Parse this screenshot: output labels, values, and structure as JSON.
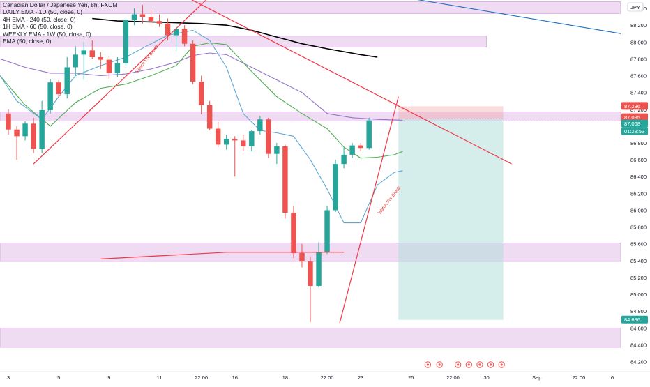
{
  "title": "Canadian Dollar / Japanese Yen, 8h, FXCM",
  "currency": "JPY",
  "indicators": [
    {
      "label": "DAILY EMA - 1D (50, close, 0)",
      "color": "#131722"
    },
    {
      "label": "4H EMA - 240 (50, close, 0)",
      "color": "#131722"
    },
    {
      "label": "1H EMA - 60 (50, close, 0)",
      "color": "#131722"
    },
    {
      "label": "WEEKLY EMA - 1W (50, close, 0)",
      "color": "#131722"
    },
    {
      "label": "EMA (50, close, 0)",
      "color": "#131722"
    }
  ],
  "annotations": [
    {
      "text": "Watch For Break",
      "x": 8.2,
      "y": 87.63
    },
    {
      "text": "Watch For Break",
      "x": 22.65,
      "y": 85.95
    }
  ],
  "price_badges": [
    {
      "text": "87.236",
      "color": "#ef5350"
    },
    {
      "text": "87.085",
      "color": "#ef5350"
    },
    {
      "text": "87.068",
      "color": "#26a69a"
    },
    {
      "text": "01:23:53",
      "color": "#26a69a"
    },
    {
      "text": "84.696",
      "color": "#26a69a"
    }
  ],
  "chart_data": {
    "type": "candlestick",
    "title": "Canadian Dollar / Japanese Yen, 8h, FXCM",
    "x_ticks": [
      {
        "label": "3",
        "x": 0.5
      },
      {
        "label": "5",
        "x": 3.5
      },
      {
        "label": "9",
        "x": 6.5
      },
      {
        "label": "11",
        "x": 9.5
      },
      {
        "label": "22:00",
        "x": 12
      },
      {
        "label": "16",
        "x": 14
      },
      {
        "label": "18",
        "x": 17
      },
      {
        "label": "22:00",
        "x": 19.5
      },
      {
        "label": "23",
        "x": 21.5
      },
      {
        "label": "25",
        "x": 24.5
      },
      {
        "label": "22:00",
        "x": 27
      },
      {
        "label": "30",
        "x": 29
      },
      {
        "label": "Sep",
        "x": 32
      },
      {
        "label": "22:00",
        "x": 34.5
      },
      {
        "label": "6",
        "x": 36.5
      }
    ],
    "y_ticks": [
      84.2,
      84.4,
      84.6,
      84.8,
      85.0,
      85.2,
      85.4,
      85.6,
      85.8,
      86.0,
      86.2,
      86.4,
      86.6,
      86.8,
      87.0,
      87.2,
      87.4,
      87.6,
      87.8,
      88.0,
      88.2,
      88.4
    ],
    "y_range": [
      84.08,
      88.5
    ],
    "x_range": [
      0,
      37
    ],
    "candles": [
      {
        "o": 87.15,
        "h": 87.2,
        "l": 86.9,
        "c": 86.96
      },
      {
        "o": 86.96,
        "h": 87.0,
        "l": 86.6,
        "c": 86.88
      },
      {
        "o": 86.88,
        "h": 87.06,
        "l": 86.83,
        "c": 87.03
      },
      {
        "o": 87.03,
        "h": 87.1,
        "l": 86.68,
        "c": 86.73
      },
      {
        "o": 86.73,
        "h": 87.3,
        "l": 86.68,
        "c": 87.19
      },
      {
        "o": 87.19,
        "h": 87.56,
        "l": 87.15,
        "c": 87.52
      },
      {
        "o": 87.52,
        "h": 87.55,
        "l": 87.35,
        "c": 87.38
      },
      {
        "o": 87.38,
        "h": 87.82,
        "l": 87.33,
        "c": 87.7
      },
      {
        "o": 87.7,
        "h": 87.95,
        "l": 87.6,
        "c": 87.85
      },
      {
        "o": 87.85,
        "h": 88.0,
        "l": 87.55,
        "c": 87.9
      },
      {
        "o": 87.9,
        "h": 88.02,
        "l": 87.8,
        "c": 87.82
      },
      {
        "o": 87.82,
        "h": 87.88,
        "l": 87.68,
        "c": 87.79
      },
      {
        "o": 87.79,
        "h": 87.83,
        "l": 87.56,
        "c": 87.63
      },
      {
        "o": 87.63,
        "h": 87.82,
        "l": 87.58,
        "c": 87.75
      },
      {
        "o": 87.75,
        "h": 88.28,
        "l": 87.7,
        "c": 88.26
      },
      {
        "o": 88.26,
        "h": 88.4,
        "l": 88.2,
        "c": 88.33
      },
      {
        "o": 88.33,
        "h": 88.44,
        "l": 88.22,
        "c": 88.3
      },
      {
        "o": 88.3,
        "h": 88.38,
        "l": 88.2,
        "c": 88.25
      },
      {
        "o": 88.25,
        "h": 88.33,
        "l": 88.18,
        "c": 88.22
      },
      {
        "o": 88.22,
        "h": 88.28,
        "l": 88.02,
        "c": 88.08
      },
      {
        "o": 88.08,
        "h": 88.18,
        "l": 87.9,
        "c": 88.16
      },
      {
        "o": 88.16,
        "h": 88.2,
        "l": 87.95,
        "c": 87.98
      },
      {
        "o": 87.98,
        "h": 88.02,
        "l": 87.5,
        "c": 87.53
      },
      {
        "o": 87.53,
        "h": 87.6,
        "l": 87.14,
        "c": 87.25
      },
      {
        "o": 87.25,
        "h": 87.3,
        "l": 86.95,
        "c": 86.97
      },
      {
        "o": 86.97,
        "h": 87.05,
        "l": 86.75,
        "c": 86.78
      },
      {
        "o": 86.78,
        "h": 86.9,
        "l": 86.72,
        "c": 86.85
      },
      {
        "o": 86.85,
        "h": 86.88,
        "l": 86.4,
        "c": 86.83
      },
      {
        "o": 86.83,
        "h": 86.9,
        "l": 86.7,
        "c": 86.76
      },
      {
        "o": 86.76,
        "h": 86.95,
        "l": 86.7,
        "c": 86.94
      },
      {
        "o": 86.94,
        "h": 87.12,
        "l": 86.9,
        "c": 87.08
      },
      {
        "o": 87.08,
        "h": 87.1,
        "l": 86.62,
        "c": 86.67
      },
      {
        "o": 86.67,
        "h": 86.8,
        "l": 86.55,
        "c": 86.76
      },
      {
        "o": 86.76,
        "h": 86.78,
        "l": 85.9,
        "c": 85.97
      },
      {
        "o": 85.97,
        "h": 86.05,
        "l": 85.43,
        "c": 85.49
      },
      {
        "o": 85.49,
        "h": 85.6,
        "l": 85.32,
        "c": 85.39
      },
      {
        "o": 85.39,
        "h": 85.45,
        "l": 84.67,
        "c": 85.1
      },
      {
        "o": 85.1,
        "h": 85.62,
        "l": 85.08,
        "c": 85.5
      },
      {
        "o": 85.5,
        "h": 86.05,
        "l": 85.48,
        "c": 86.0
      },
      {
        "o": 86.0,
        "h": 86.6,
        "l": 85.98,
        "c": 86.55
      },
      {
        "o": 86.55,
        "h": 86.75,
        "l": 86.5,
        "c": 86.66
      },
      {
        "o": 86.66,
        "h": 86.8,
        "l": 86.62,
        "c": 86.77
      },
      {
        "o": 86.77,
        "h": 86.8,
        "l": 86.7,
        "c": 86.74
      },
      {
        "o": 86.74,
        "h": 87.1,
        "l": 86.72,
        "c": 87.068
      }
    ],
    "candle_x_start": 0.5,
    "candle_x_step": 0.5,
    "series": [
      {
        "color": "#000000",
        "x": [
          5.5,
          7,
          9,
          10.5,
          12,
          13.5,
          15,
          16.5,
          18,
          19.5,
          21.5,
          22.5
        ],
        "y": [
          88.28,
          88.25,
          88.24,
          88.23,
          88.22,
          88.2,
          88.14,
          88.06,
          87.98,
          87.92,
          87.85,
          87.82
        ]
      },
      {
        "color": "#9575cd",
        "x": [
          0,
          1.5,
          3,
          4.5,
          6,
          7.5,
          9,
          10.5,
          11.5,
          12.5,
          13.5,
          15,
          16.5,
          18,
          19.5,
          21,
          22.5,
          24
        ],
        "y": [
          87.8,
          87.7,
          87.63,
          87.63,
          87.6,
          87.62,
          87.68,
          87.76,
          87.84,
          87.87,
          87.85,
          87.7,
          87.55,
          87.4,
          87.15,
          87.1,
          87.08,
          87.07
        ]
      },
      {
        "color": "#4caf50",
        "x": [
          0,
          1.5,
          3,
          4.5,
          6,
          7.5,
          9,
          10.5,
          11.5,
          12.5,
          13.5,
          15,
          16.5,
          18,
          19.5,
          20.5,
          21.5,
          22.5,
          23.5,
          24
        ],
        "y": [
          87.6,
          87.25,
          87.0,
          87.28,
          87.45,
          87.5,
          87.6,
          87.72,
          87.95,
          87.99,
          87.97,
          87.65,
          87.35,
          87.15,
          86.97,
          86.75,
          86.62,
          86.63,
          86.66,
          86.7
        ]
      },
      {
        "color": "#5fa8d3",
        "x": [
          0,
          1,
          2.5,
          3.5,
          4.5,
          6,
          7.5,
          9,
          10,
          11.5,
          12.5,
          13.5,
          14.5,
          15.5,
          16.5,
          17.5,
          18.5,
          19.5,
          20.5,
          21.5,
          22.5,
          23.5,
          24
        ],
        "y": [
          87.6,
          87.3,
          87.08,
          87.35,
          87.6,
          87.72,
          87.82,
          87.98,
          88.08,
          88.14,
          88.02,
          87.7,
          87.15,
          86.95,
          86.92,
          86.88,
          86.6,
          86.25,
          85.85,
          85.85,
          86.3,
          86.45,
          86.47
        ]
      },
      {
        "color": "#1e6fbf",
        "x": [
          22,
          37
        ],
        "y": [
          88.6,
          88.1
        ]
      }
    ],
    "trendlines": [
      {
        "color": "#f23645",
        "x": [
          2,
          13.5
        ],
        "y": [
          86.55,
          88.73
        ]
      },
      {
        "color": "#f23645",
        "x": [
          9.5,
          30.5
        ],
        "y": [
          88.7,
          86.55
        ]
      },
      {
        "color": "#f23645",
        "x": [
          20.25,
          23.75
        ],
        "y": [
          84.66,
          87.35
        ]
      },
      {
        "color": "#f23645",
        "x": [
          6,
          13.5,
          20.5
        ],
        "y": [
          85.42,
          85.5,
          85.5
        ]
      }
    ],
    "zones": [
      {
        "y1": 88.34,
        "y2": 88.48,
        "x1": 0,
        "x2": 37
      },
      {
        "y1": 87.94,
        "y2": 88.07,
        "x1": 0,
        "x2": 29
      },
      {
        "y1": 87.06,
        "y2": 87.17,
        "x1": 0,
        "x2": 37
      },
      {
        "y1": 85.39,
        "y2": 85.61,
        "x1": 0,
        "x2": 37
      },
      {
        "y1": 84.37,
        "y2": 84.6,
        "x1": 0,
        "x2": 37
      }
    ],
    "position": {
      "entry": 87.085,
      "stop": 87.236,
      "target": 84.696,
      "x1": 23.75,
      "x2": 30
    }
  }
}
